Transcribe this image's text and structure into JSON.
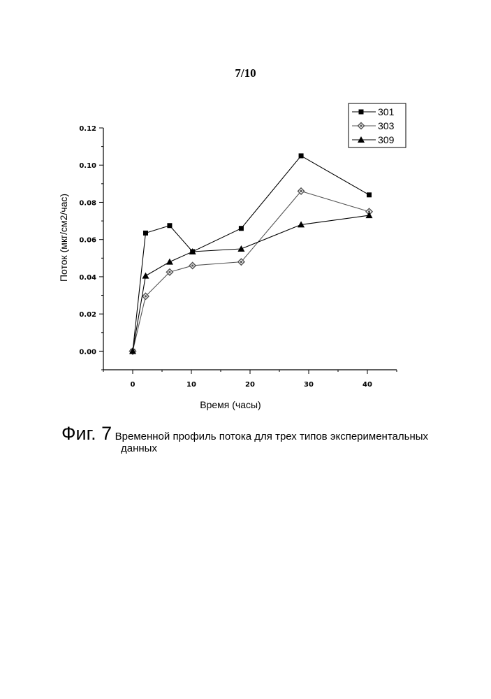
{
  "page": {
    "number": "7/10"
  },
  "caption": {
    "label": "Фиг. 7",
    "text_line1": "Временной профиль потока для трех типов экспериментальных",
    "text_line2": "данных"
  },
  "chart_data": {
    "type": "line",
    "title": "",
    "xlabel": "Время (часы)",
    "ylabel": "Поток (мкг/см2/час)",
    "xlim": [
      -5,
      45
    ],
    "ylim": [
      -0.01,
      0.12
    ],
    "xticks": [
      0,
      10,
      20,
      30,
      40
    ],
    "xtick_labels": [
      "0",
      "10",
      "20",
      "30",
      "40"
    ],
    "yticks": [
      0.0,
      0.02,
      0.04,
      0.06,
      0.08,
      0.1,
      0.12
    ],
    "ytick_labels": [
      "0.00",
      "0.02",
      "0.04",
      "0.06",
      "0.08",
      "0.10",
      "0.12"
    ],
    "grid": false,
    "legend_position": "top-right",
    "series": [
      {
        "name": "301",
        "marker": "square",
        "color": "#000000",
        "x": [
          0,
          2.2,
          6.3,
          10.2,
          18.5,
          28.7,
          40.3
        ],
        "y": [
          0.0,
          0.0635,
          0.0675,
          0.0535,
          0.066,
          0.105,
          0.084
        ]
      },
      {
        "name": "303",
        "marker": "diamond",
        "color": "#555555",
        "x": [
          0,
          2.2,
          6.3,
          10.2,
          18.5,
          28.7,
          40.3
        ],
        "y": [
          0.0,
          0.0295,
          0.0425,
          0.046,
          0.048,
          0.086,
          0.075
        ]
      },
      {
        "name": "309",
        "marker": "triangle",
        "color": "#000000",
        "x": [
          0,
          2.2,
          6.3,
          10.2,
          18.5,
          28.7,
          40.3
        ],
        "y": [
          0.0,
          0.0405,
          0.048,
          0.0535,
          0.055,
          0.068,
          0.073
        ]
      }
    ]
  }
}
